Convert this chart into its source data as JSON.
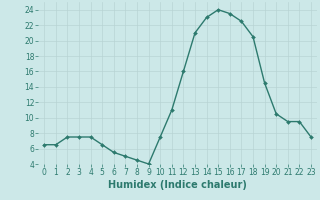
{
  "x": [
    0,
    1,
    2,
    3,
    4,
    5,
    6,
    7,
    8,
    9,
    10,
    11,
    12,
    13,
    14,
    15,
    16,
    17,
    18,
    19,
    20,
    21,
    22,
    23
  ],
  "y": [
    6.5,
    6.5,
    7.5,
    7.5,
    7.5,
    6.5,
    5.5,
    5.0,
    4.5,
    4.0,
    7.5,
    11.0,
    16.0,
    21.0,
    23.0,
    24.0,
    23.5,
    22.5,
    20.5,
    14.5,
    10.5,
    9.5,
    9.5,
    7.5
  ],
  "line_color": "#2d7a6e",
  "marker": "D",
  "markersize": 2.0,
  "linewidth": 1.0,
  "xlabel": "Humidex (Indice chaleur)",
  "xlabel_fontsize": 7,
  "ylim": [
    4,
    25
  ],
  "xlim": [
    -0.5,
    23.5
  ],
  "yticks": [
    4,
    6,
    8,
    10,
    12,
    14,
    16,
    18,
    20,
    22,
    24
  ],
  "xticks": [
    0,
    1,
    2,
    3,
    4,
    5,
    6,
    7,
    8,
    9,
    10,
    11,
    12,
    13,
    14,
    15,
    16,
    17,
    18,
    19,
    20,
    21,
    22,
    23
  ],
  "background_color": "#cce8e8",
  "grid_color": "#b8d4d4",
  "tick_color": "#2d7a6e",
  "tick_fontsize": 5.5
}
